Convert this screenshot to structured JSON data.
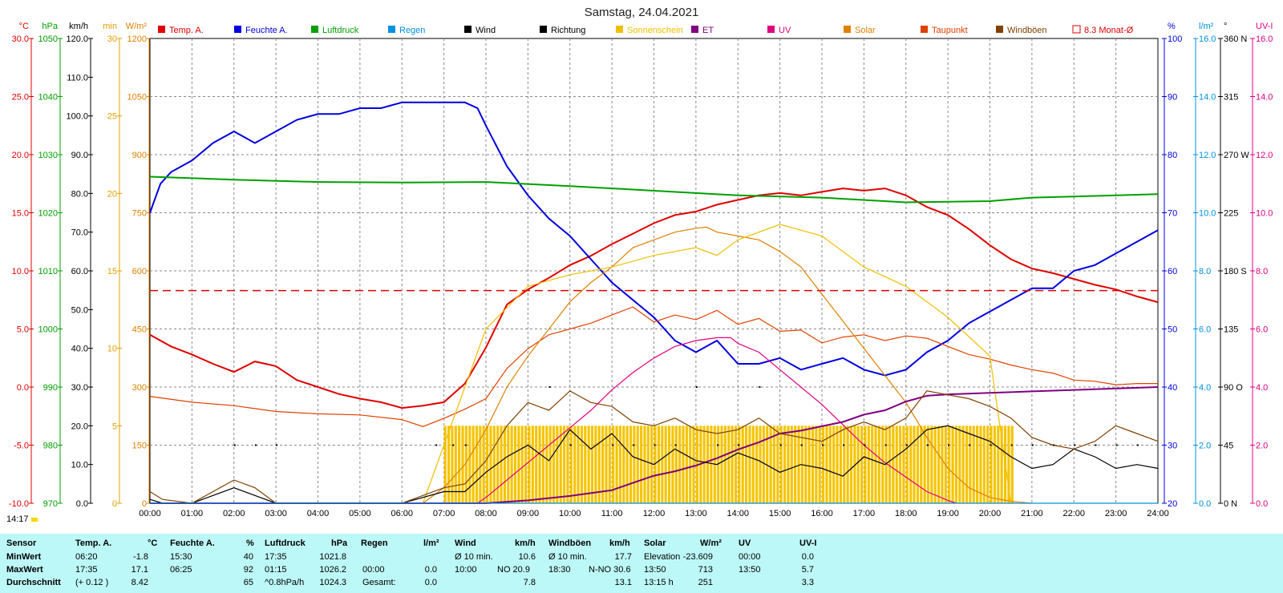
{
  "chart_data": {
    "type": "line",
    "title": "Samstag, 24.04.2021",
    "x_ticks": [
      "00:00",
      "01:00",
      "02:00",
      "03:00",
      "04:00",
      "05:00",
      "06:00",
      "07:00",
      "08:00",
      "09:00",
      "10:00",
      "11:00",
      "12:00",
      "13:00",
      "14:00",
      "15:00",
      "16:00",
      "17:00",
      "18:00",
      "19:00",
      "20:00",
      "21:00",
      "22:00",
      "23:00",
      "24:00"
    ],
    "axes": {
      "temp": {
        "unit": "°C",
        "color": "#e00000",
        "ticks": [
          "30.0",
          "25.0",
          "20.0",
          "15.0",
          "10.0",
          "5.0",
          "0.0",
          "-5.0",
          "-10.0"
        ],
        "range": [
          -10,
          30
        ]
      },
      "pressure": {
        "unit": "hPa",
        "color": "#00a000",
        "ticks": [
          "1050",
          "1040",
          "1030",
          "1020",
          "1010",
          "1000",
          "990",
          "980",
          "970"
        ],
        "range": [
          970,
          1050
        ]
      },
      "wind": {
        "unit": "km/h",
        "color": "#000000",
        "ticks": [
          "120.0",
          "110.0",
          "100.0",
          "90.0",
          "80.0",
          "70.0",
          "60.0",
          "50.0",
          "40.0",
          "30.0",
          "20.0",
          "10.0",
          "0.0"
        ],
        "range": [
          0,
          120
        ]
      },
      "sunshine": {
        "unit": "min",
        "color": "#e0a000",
        "ticks": [
          "30",
          "25",
          "20",
          "15",
          "10",
          "5",
          "0"
        ],
        "range": [
          0,
          30
        ]
      },
      "solar": {
        "unit": "W/m²",
        "color": "#e08000",
        "ticks": [
          "1200",
          "1050",
          "900",
          "750",
          "600",
          "450",
          "300",
          "150",
          "0"
        ],
        "range": [
          0,
          1200
        ]
      },
      "humidity": {
        "unit": "%",
        "color": "#0000e0",
        "ticks": [
          "100",
          "90",
          "80",
          "70",
          "60",
          "50",
          "40",
          "30",
          "20"
        ],
        "range": [
          20,
          100
        ]
      },
      "rain": {
        "unit": "l/m²",
        "color": "#0090e0",
        "ticks": [
          "16.0",
          "14.0",
          "12.0",
          "10.0",
          "8.0",
          "6.0",
          "4.0",
          "2.0",
          "0.0"
        ],
        "range": [
          0,
          16
        ]
      },
      "direction": {
        "unit": "°",
        "color": "#000000",
        "ticks": [
          "360 N",
          "315",
          "270 W",
          "225",
          "180 S",
          "135",
          "90 O",
          "45",
          "0 N"
        ],
        "range": [
          0,
          360
        ]
      },
      "uv": {
        "unit": "UV-I",
        "color": "#e00080",
        "ticks": [
          "16.0",
          "14.0",
          "12.0",
          "10.0",
          "8.0",
          "6.0",
          "4.0",
          "2.0",
          "0.0"
        ],
        "range": [
          0,
          16
        ]
      }
    },
    "legend": [
      {
        "label": "Temp. A.",
        "color": "#e00000"
      },
      {
        "label": "Feuchte A.",
        "color": "#0000e0"
      },
      {
        "label": "Luftdruck",
        "color": "#00a000"
      },
      {
        "label": "Regen",
        "color": "#0090e0"
      },
      {
        "label": "Wind",
        "color": "#000000"
      },
      {
        "label": "Richtung",
        "color": "#000000"
      },
      {
        "label": "Sonnenschein",
        "color": "#f0c000"
      },
      {
        "label": "ET",
        "color": "#800080"
      },
      {
        "label": "UV",
        "color": "#e00080"
      },
      {
        "label": "Solar",
        "color": "#e08000"
      },
      {
        "label": "Taupunkt",
        "color": "#e04000"
      },
      {
        "label": "Windböen",
        "color": "#804000"
      },
      {
        "label": "8.3 Monat-Ø",
        "color": "#e00000"
      }
    ],
    "monthly_avg_temp": 8.3,
    "series": [
      {
        "name": "Temp. A.",
        "axis": "temp",
        "color": "#e00000",
        "x": [
          0,
          0.5,
          1,
          1.5,
          2,
          2.5,
          3,
          3.5,
          4,
          4.5,
          5,
          5.5,
          6,
          6.5,
          7,
          7.5,
          8,
          8.5,
          9,
          9.5,
          10,
          10.5,
          11,
          11.5,
          12,
          12.5,
          13,
          13.5,
          14,
          14.5,
          15,
          15.5,
          16,
          16.5,
          17,
          17.5,
          18,
          18.5,
          19,
          19.5,
          20,
          20.5,
          21,
          21.5,
          22,
          22.5,
          23,
          23.5,
          24
        ],
        "y": [
          4.5,
          3.5,
          2.8,
          2.0,
          1.3,
          2.2,
          1.8,
          0.6,
          0,
          -0.6,
          -1.0,
          -1.3,
          -1.8,
          -1.6,
          -1.3,
          0.3,
          3.4,
          7.1,
          8.4,
          9.4,
          10.5,
          11.3,
          12.3,
          13.2,
          14.1,
          14.8,
          15.1,
          15.7,
          16.1,
          16.5,
          16.7,
          16.5,
          16.8,
          17.1,
          16.9,
          17.1,
          16.5,
          15.5,
          14.8,
          13.6,
          12.2,
          11.0,
          10.2,
          9.8,
          9.3,
          8.8,
          8.4,
          7.8,
          7.3
        ]
      },
      {
        "name": "Feuchte A.",
        "axis": "humidity",
        "color": "#0000e0",
        "x": [
          0,
          0.25,
          0.5,
          1,
          1.5,
          2,
          2.5,
          3,
          3.5,
          4,
          4.5,
          5,
          5.5,
          6,
          6.5,
          7,
          7.5,
          7.8,
          8,
          8.5,
          9,
          9.5,
          10,
          10.5,
          11,
          11.5,
          12,
          12.5,
          13,
          13.5,
          14,
          14.5,
          15,
          15.5,
          16,
          16.5,
          17,
          17.5,
          18,
          18.5,
          19,
          19.5,
          20,
          20.5,
          21,
          21.5,
          22,
          22.5,
          23,
          23.5,
          24
        ],
        "y": [
          70,
          75,
          77,
          79,
          82,
          84,
          82,
          84,
          86,
          87,
          87,
          88,
          88,
          89,
          89,
          89,
          89,
          88,
          85,
          78,
          73,
          69,
          66,
          62,
          58,
          55,
          52,
          48,
          46,
          48,
          44,
          44,
          45,
          43,
          44,
          45,
          43,
          42,
          43,
          46,
          48,
          51,
          53,
          55,
          57,
          57,
          60,
          61,
          63,
          65,
          67
        ]
      },
      {
        "name": "Luftdruck",
        "axis": "pressure",
        "color": "#00a000",
        "x": [
          0,
          2,
          4,
          6,
          8,
          10,
          12,
          14,
          16,
          18,
          19,
          20,
          21,
          22,
          23,
          24
        ],
        "y": [
          1026.2,
          1025.7,
          1025.3,
          1025.2,
          1025.3,
          1024.6,
          1023.8,
          1023.0,
          1022.6,
          1021.8,
          1021.9,
          1022.0,
          1022.6,
          1022.8,
          1023.0,
          1023.2
        ]
      },
      {
        "name": "Taupunkt",
        "axis": "temp",
        "color": "#e04000",
        "x": [
          0,
          1,
          2,
          3,
          4,
          5,
          6,
          6.5,
          7,
          7.5,
          8,
          8.5,
          9,
          9.5,
          10,
          10.5,
          11,
          11.5,
          12,
          12.5,
          13,
          13.5,
          14,
          14.5,
          15,
          15.5,
          16,
          16.5,
          17,
          17.5,
          18,
          18.5,
          19,
          19.5,
          20,
          20.5,
          21,
          21.5,
          22,
          22.5,
          23,
          23.5,
          24
        ],
        "y": [
          -0.8,
          -1.3,
          -1.6,
          -2.1,
          -2.3,
          -2.4,
          -2.8,
          -3.4,
          -2.7,
          -1.9,
          -1.0,
          1.6,
          3.3,
          4.5,
          5.0,
          5.5,
          6.2,
          6.9,
          5.6,
          6.2,
          5.8,
          6.6,
          5.4,
          5.9,
          4.8,
          4.9,
          3.8,
          4.3,
          4.5,
          4.0,
          4.4,
          4.2,
          3.5,
          2.8,
          2.4,
          1.9,
          1.5,
          1.2,
          0.6,
          0.5,
          0.2,
          0.3,
          0.3
        ]
      },
      {
        "name": "Solar",
        "axis": "solar",
        "color": "#e08000",
        "x": [
          6.5,
          7,
          7.5,
          8,
          8.5,
          9,
          9.5,
          10,
          10.5,
          11,
          11.5,
          12,
          12.5,
          13,
          13.25,
          13.5,
          14,
          14.5,
          15,
          15.5,
          16,
          16.5,
          17,
          17.5,
          18,
          18.5,
          19,
          19.5,
          20,
          20.5,
          21
        ],
        "y": [
          0,
          40,
          100,
          190,
          300,
          380,
          450,
          520,
          570,
          610,
          660,
          680,
          700,
          710,
          713,
          700,
          690,
          680,
          650,
          610,
          540,
          470,
          400,
          330,
          260,
          170,
          90,
          40,
          15,
          5,
          0
        ]
      },
      {
        "name": "Sonnenschein",
        "axis": "solar",
        "color": "#f0c000",
        "x": [
          6.5,
          7,
          8,
          9,
          10,
          11,
          12,
          13,
          13.5,
          14,
          15,
          16,
          17,
          18,
          19,
          20,
          20.5
        ],
        "y": [
          0,
          150,
          450,
          560,
          590,
          610,
          640,
          660,
          640,
          680,
          720,
          690,
          610,
          560,
          480,
          380,
          0
        ]
      },
      {
        "name": "UV",
        "axis": "uv",
        "color": "#e00080",
        "x": [
          7.8,
          8,
          8.5,
          9,
          9.5,
          10,
          10.5,
          11,
          11.5,
          12,
          12.5,
          13,
          13.5,
          13.83,
          14,
          14.5,
          15,
          15.5,
          16,
          16.5,
          17,
          17.5,
          18,
          18.5,
          19,
          19.2
        ],
        "y": [
          0,
          0.2,
          0.8,
          1.4,
          2.0,
          2.6,
          3.2,
          3.9,
          4.5,
          5.0,
          5.4,
          5.6,
          5.7,
          5.7,
          5.5,
          5.2,
          4.6,
          4.0,
          3.4,
          2.7,
          2.0,
          1.4,
          0.9,
          0.4,
          0.1,
          0
        ]
      },
      {
        "name": "ET",
        "axis": "rain",
        "color": "#800080",
        "x": [
          0,
          8,
          9,
          10,
          11,
          11.5,
          12,
          12.5,
          13,
          13.5,
          14,
          14.5,
          15,
          15.5,
          16,
          16.5,
          17,
          17.5,
          18,
          18.5,
          19,
          20,
          21,
          22,
          23,
          24
        ],
        "y": [
          0,
          0,
          0.1,
          0.25,
          0.45,
          0.7,
          0.95,
          1.1,
          1.3,
          1.55,
          1.85,
          2.1,
          2.4,
          2.5,
          2.65,
          2.8,
          3.05,
          3.2,
          3.5,
          3.7,
          3.75,
          3.8,
          3.85,
          3.9,
          3.95,
          4.0
        ]
      },
      {
        "name": "Wind",
        "axis": "wind",
        "color": "#000000",
        "x": [
          0,
          0.3,
          1,
          2,
          2.5,
          3,
          6,
          7,
          7.5,
          8,
          8.5,
          9,
          9.5,
          10,
          10.5,
          11,
          11.5,
          12,
          12.5,
          13,
          13.5,
          14,
          14.5,
          15,
          15.5,
          16,
          16.5,
          17,
          17.5,
          18,
          18.5,
          19,
          19.5,
          20,
          20.5,
          21,
          21.5,
          22,
          22.5,
          23,
          23.5,
          24
        ],
        "y": [
          1,
          0,
          0,
          4,
          2,
          0,
          0,
          3,
          3,
          8,
          12,
          15,
          11,
          19,
          14,
          18,
          12,
          10,
          14,
          11,
          10,
          13,
          11,
          8,
          10,
          9,
          7,
          12,
          10,
          14,
          19,
          20,
          18,
          16,
          12,
          9,
          10,
          14,
          12,
          9,
          10,
          9
        ]
      },
      {
        "name": "Windböen",
        "axis": "wind",
        "color": "#804000",
        "x": [
          0,
          0.3,
          1,
          2,
          2.5,
          3,
          6,
          7,
          7.5,
          8,
          8.5,
          9,
          9.5,
          10,
          10.5,
          11,
          11.5,
          12,
          12.5,
          13,
          13.5,
          14,
          14.5,
          15,
          15.5,
          16,
          16.5,
          17,
          17.5,
          18,
          18.5,
          19,
          19.5,
          20,
          20.5,
          21,
          21.5,
          22,
          22.5,
          23,
          23.5,
          24
        ],
        "y": [
          3,
          1,
          0,
          6,
          4,
          0,
          0,
          4,
          5,
          11,
          20,
          26,
          24,
          29,
          26,
          25,
          21,
          20,
          22,
          19,
          18,
          19,
          22,
          18,
          17,
          16,
          19,
          21,
          19,
          22,
          29,
          28,
          27,
          25,
          22,
          17,
          15,
          14,
          16,
          20,
          18,
          16
        ]
      },
      {
        "name": "Regen",
        "axis": "rain",
        "color": "#0090e0",
        "x": [
          0,
          24
        ],
        "y": [
          0,
          0
        ]
      }
    ],
    "sunshine_bars": {
      "axis": "sunshine",
      "color": "#f5c400",
      "from": 7.0,
      "to": 20.5,
      "value": 5,
      "step_minutes": 5
    },
    "richtung_points": {
      "axis": "direction",
      "x": [
        2,
        2.5,
        3,
        6.8,
        7.2,
        7.5,
        9.5,
        10,
        11,
        11.5,
        12,
        12.5,
        13,
        13.5,
        14,
        14.5,
        15,
        15.5,
        16,
        16.5,
        17,
        17.5,
        18,
        18.5,
        19,
        19.5,
        20,
        20.5,
        21,
        21.5,
        22,
        22.5,
        23,
        23.5
      ],
      "y": [
        45,
        45,
        45,
        45,
        45,
        45,
        90,
        45,
        45,
        45,
        45,
        45,
        90,
        45,
        45,
        90,
        45,
        45,
        45,
        45,
        45,
        45,
        45,
        45,
        45,
        45,
        45,
        45,
        45,
        45,
        45,
        45,
        45,
        45
      ]
    }
  },
  "time_badge": "14:17",
  "footer": {
    "headers": {
      "sensor": "Sensor",
      "temp": "Temp. A.",
      "temp_u": "°C",
      "hum": "Feuchte A.",
      "hum_u": "%",
      "press": "Luftdruck",
      "press_u": "hPa",
      "rain": "Regen",
      "rain_u": "l/m²",
      "wind": "Wind",
      "wind_u": "km/h",
      "gust": "Windböen",
      "gust_u": "km/h",
      "solar": "Solar",
      "solar_u": "W/m²",
      "uv": "UV",
      "uv_u": "UV-I"
    },
    "rows": [
      {
        "label": "MinWert",
        "temp_t": "06:20",
        "temp_v": "-1.8",
        "hum_t": "15:30",
        "hum_v": "40",
        "press_t": "17:35",
        "press_v": "1021.8",
        "rain_t": "",
        "rain_v": "",
        "wind_t": "Ø 10 min.",
        "wind_v": "10.6",
        "gust_t": "Ø 10 min.",
        "gust_v": "17.7",
        "solar_t": "Elevation",
        "solar_v": "-23.609",
        "uv_t": "00:00",
        "uv_v": "0.0"
      },
      {
        "label": "MaxWert",
        "temp_t": "17:35",
        "temp_v": "17.1",
        "hum_t": "06:25",
        "hum_v": "92",
        "press_t": "01:15",
        "press_v": "1026.2",
        "rain_t": "00:00",
        "rain_v": "0.0",
        "wind_t": "10:00",
        "wind_m": "NO 20.9",
        "wind_v": "",
        "gust_t": "18:30",
        "gust_m": "N-NO 30.6",
        "gust_v": "",
        "solar_t": "13:50",
        "solar_v": "713",
        "uv_t": "13:50",
        "uv_v": "5.7"
      },
      {
        "label": "Durchschnitt",
        "temp_t": "(+ 0.12 )",
        "temp_v": "8.42",
        "hum_t": "",
        "hum_v": "65",
        "press_t": "^0.8hPa/h",
        "press_v": "1024.3",
        "rain_t": "Gesamt:",
        "rain_v": "0.0",
        "wind_t": "",
        "wind_v": "7.8",
        "gust_t": "",
        "gust_v": "13.1",
        "solar_t": "13:15 h",
        "solar_v": "251",
        "uv_t": "",
        "uv_v": "3.3"
      }
    ]
  }
}
